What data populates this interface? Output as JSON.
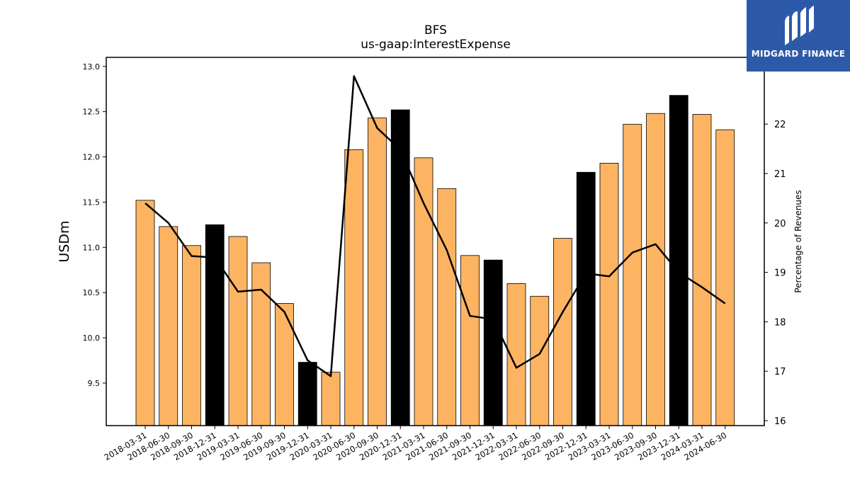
{
  "chart_data": {
    "type": "bar",
    "title": "BFS",
    "subtitle": "us-gaap:InterestExpense",
    "ylabel": "USDm",
    "y2label": "Percentage of Revenues",
    "ylim": [
      9.03,
      13.1
    ],
    "y2lim": [
      15.9,
      23.35
    ],
    "yticks": [
      9.5,
      10.0,
      10.5,
      11.0,
      11.5,
      12.0,
      12.5,
      13.0
    ],
    "y2ticks": [
      16,
      17,
      18,
      19,
      20,
      21,
      22
    ],
    "categories": [
      "2018-03-31",
      "2018-06-30",
      "2018-09-30",
      "2018-12-31",
      "2019-03-31",
      "2019-06-30",
      "2019-09-30",
      "2019-12-31",
      "2020-03-31",
      "2020-06-30",
      "2020-09-30",
      "2020-12-31",
      "2021-03-31",
      "2021-06-30",
      "2021-09-30",
      "2021-12-31",
      "2022-03-31",
      "2022-06-30",
      "2022-09-30",
      "2022-12-31",
      "2023-03-31",
      "2023-06-30",
      "2023-09-30",
      "2023-12-31",
      "2024-03-31",
      "2024-06-30"
    ],
    "series": [
      {
        "type": "bar",
        "axis": "left",
        "values": [
          11.52,
          11.23,
          11.02,
          11.25,
          11.12,
          10.83,
          10.38,
          9.73,
          9.62,
          12.08,
          12.43,
          12.52,
          11.99,
          11.65,
          10.91,
          10.86,
          10.6,
          10.46,
          11.1,
          11.83,
          11.93,
          12.36,
          12.48,
          12.68,
          12.47,
          12.3
        ]
      },
      {
        "type": "line",
        "axis": "right",
        "values": [
          20.4,
          20.0,
          19.33,
          19.3,
          18.61,
          18.65,
          18.2,
          17.22,
          16.9,
          22.97,
          21.92,
          21.48,
          20.4,
          19.45,
          18.12,
          18.05,
          17.07,
          17.35,
          18.2,
          18.98,
          18.92,
          19.4,
          19.57,
          19.0,
          18.7,
          18.37
        ]
      }
    ],
    "highlighted_categories": [
      "2018-12-31",
      "2019-12-31",
      "2020-12-31",
      "2021-12-31",
      "2022-12-31",
      "2023-12-31"
    ],
    "colors": {
      "bar": "#fdb462",
      "bar_highlight": "#000000",
      "line": "#000000",
      "edge": "#000000"
    },
    "grid": false
  },
  "logo": {
    "text": "MIDGARD FINANCE",
    "background": "#2d5aa8"
  }
}
